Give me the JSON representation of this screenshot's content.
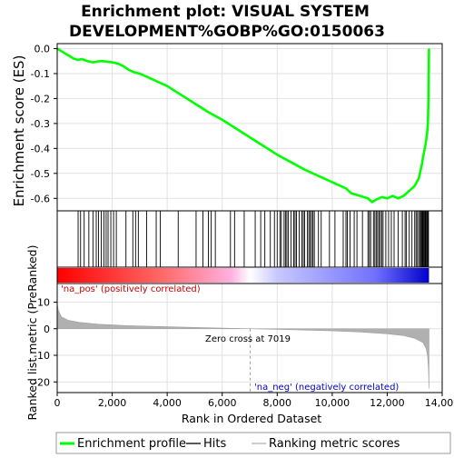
{
  "title": {
    "line1": "Enrichment plot: VISUAL SYSTEM",
    "line2": "DEVELOPMENT%GOBP%GO:0150063"
  },
  "chart_data": [
    {
      "type": "line",
      "name": "enrichment-score",
      "ylabel": "Enrichment score (ES)",
      "xlim": [
        0,
        14000
      ],
      "ylim": [
        -0.65,
        0.02
      ],
      "yticks": [
        0.0,
        -0.1,
        -0.2,
        -0.3,
        -0.4,
        -0.5,
        -0.6
      ],
      "ytick_labels": [
        "0.0",
        "-0.1",
        "-0.2",
        "-0.3",
        "-0.4",
        "-0.5",
        "-0.6"
      ],
      "grid": true,
      "color": "#00ff00",
      "x": [
        0,
        300,
        600,
        750,
        900,
        1100,
        1300,
        1450,
        1600,
        1800,
        2000,
        2200,
        2400,
        2600,
        2800,
        3000,
        3200,
        3500,
        3800,
        4000,
        4500,
        5000,
        5500,
        6000,
        6500,
        7000,
        7500,
        8000,
        8500,
        9000,
        9500,
        10000,
        10500,
        10700,
        11000,
        11300,
        11450,
        11600,
        11800,
        12000,
        12200,
        12400,
        12600,
        12800,
        13000,
        13150,
        13250,
        13330,
        13400,
        13450,
        13480,
        13500,
        13520
      ],
      "y": [
        0.0,
        -0.02,
        -0.04,
        -0.045,
        -0.042,
        -0.05,
        -0.055,
        -0.052,
        -0.05,
        -0.052,
        -0.055,
        -0.06,
        -0.07,
        -0.085,
        -0.095,
        -0.1,
        -0.11,
        -0.125,
        -0.14,
        -0.15,
        -0.185,
        -0.22,
        -0.255,
        -0.285,
        -0.32,
        -0.355,
        -0.39,
        -0.425,
        -0.455,
        -0.485,
        -0.51,
        -0.535,
        -0.56,
        -0.58,
        -0.59,
        -0.6,
        -0.615,
        -0.605,
        -0.595,
        -0.6,
        -0.59,
        -0.6,
        -0.59,
        -0.57,
        -0.55,
        -0.52,
        -0.47,
        -0.42,
        -0.38,
        -0.34,
        -0.3,
        -0.2,
        0.0
      ]
    },
    {
      "type": "scatter",
      "name": "hits",
      "xlim": [
        0,
        14000
      ],
      "x": [
        760,
        850,
        980,
        1150,
        1300,
        1420,
        1500,
        1600,
        1700,
        1780,
        1850,
        1950,
        2050,
        2150,
        2500,
        2750,
        2850,
        2950,
        3250,
        3600,
        3750,
        4400,
        5050,
        5300,
        5500,
        5600,
        5750,
        6300,
        6450,
        6800,
        7200,
        7400,
        7550,
        7750,
        7900,
        8000,
        8100,
        8150,
        8250,
        8300,
        8350,
        8400,
        8500,
        8600,
        8650,
        8700,
        8800,
        8900,
        8950,
        9000,
        9100,
        9150,
        9200,
        9250,
        9300,
        9350,
        9500,
        9600,
        9900,
        10100,
        10400,
        10500,
        10550,
        10650,
        10800,
        10900,
        11100,
        11300,
        11350,
        11400,
        11500,
        11550,
        11600,
        11650,
        11700,
        11750,
        11800,
        11850,
        11950,
        12050,
        12150,
        12250,
        12400,
        12550,
        12650,
        12700,
        12800,
        12900,
        13000,
        13050,
        13100,
        13150,
        13200,
        13220,
        13250,
        13280,
        13300,
        13320,
        13350,
        13380,
        13400,
        13430,
        13450,
        13480,
        13500
      ]
    },
    {
      "type": "heatmap",
      "name": "ranking-gradient",
      "xlim": [
        0,
        14000
      ],
      "zero_cross": 7019,
      "colors": [
        "#ff0000",
        "#ffb0e0",
        "#c8c8ff",
        "#0000cc"
      ]
    },
    {
      "type": "area",
      "name": "ranking-metric",
      "xlabel": "Rank in Ordered Dataset",
      "ylabel": "Ranked list metric (PreRanked)",
      "xlim": [
        0,
        14000
      ],
      "ylim": [
        -24,
        17
      ],
      "yticks": [
        10,
        0,
        -10,
        -20
      ],
      "ytick_labels": [
        "10",
        "0",
        "-10",
        "-20"
      ],
      "xticks": [
        0,
        2000,
        4000,
        6000,
        8000,
        10000,
        12000,
        14000
      ],
      "xtick_labels": [
        "0",
        "2,000",
        "4,000",
        "6,000",
        "8,000",
        "10,000",
        "12,000",
        "14,000"
      ],
      "grid": true,
      "color": "#b0b0b0",
      "x": [
        0,
        40,
        150,
        400,
        800,
        1500,
        2500,
        4000,
        5500,
        7019,
        8500,
        10000,
        11000,
        12000,
        12600,
        13000,
        13300,
        13420,
        13470,
        13500,
        13520
      ],
      "y": [
        9.5,
        7.0,
        4.5,
        3.2,
        2.4,
        1.7,
        1.2,
        0.75,
        0.35,
        0.0,
        -0.35,
        -0.8,
        -1.2,
        -1.9,
        -2.6,
        -3.6,
        -5.2,
        -7.5,
        -10.5,
        -15.0,
        -22.5
      ],
      "annotations": {
        "pos_label": "'na_pos' (positively correlated)",
        "neg_label": "'na_neg' (negatively correlated)",
        "zero_cross_label": "Zero cross at 7019"
      }
    }
  ],
  "legend": {
    "items": [
      {
        "label": "Enrichment profile",
        "color": "#00ff00"
      },
      {
        "label": "Hits",
        "color": "#000000"
      },
      {
        "label": "Ranking metric scores",
        "color": "#b0b0b0"
      }
    ]
  }
}
